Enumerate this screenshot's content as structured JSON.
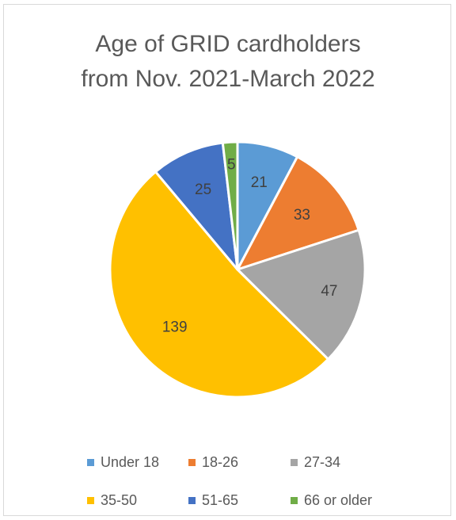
{
  "chart_data": {
    "type": "pie",
    "title_lines": [
      "Age of GRID cardholders",
      "from Nov. 2021-March 2022"
    ],
    "categories": [
      "Under 18",
      "18-26",
      "27-34",
      "35-50",
      "51-65",
      "66 or older"
    ],
    "values": [
      21,
      33,
      47,
      139,
      25,
      5
    ],
    "colors": [
      "#5b9bd5",
      "#ed7d31",
      "#a5a5a5",
      "#ffc000",
      "#4472c4",
      "#70ad47"
    ],
    "data_labels": [
      "21",
      "33",
      "47",
      "139",
      "25",
      "5"
    ],
    "legend_position": "bottom",
    "slice_border_color": "#ffffff"
  }
}
